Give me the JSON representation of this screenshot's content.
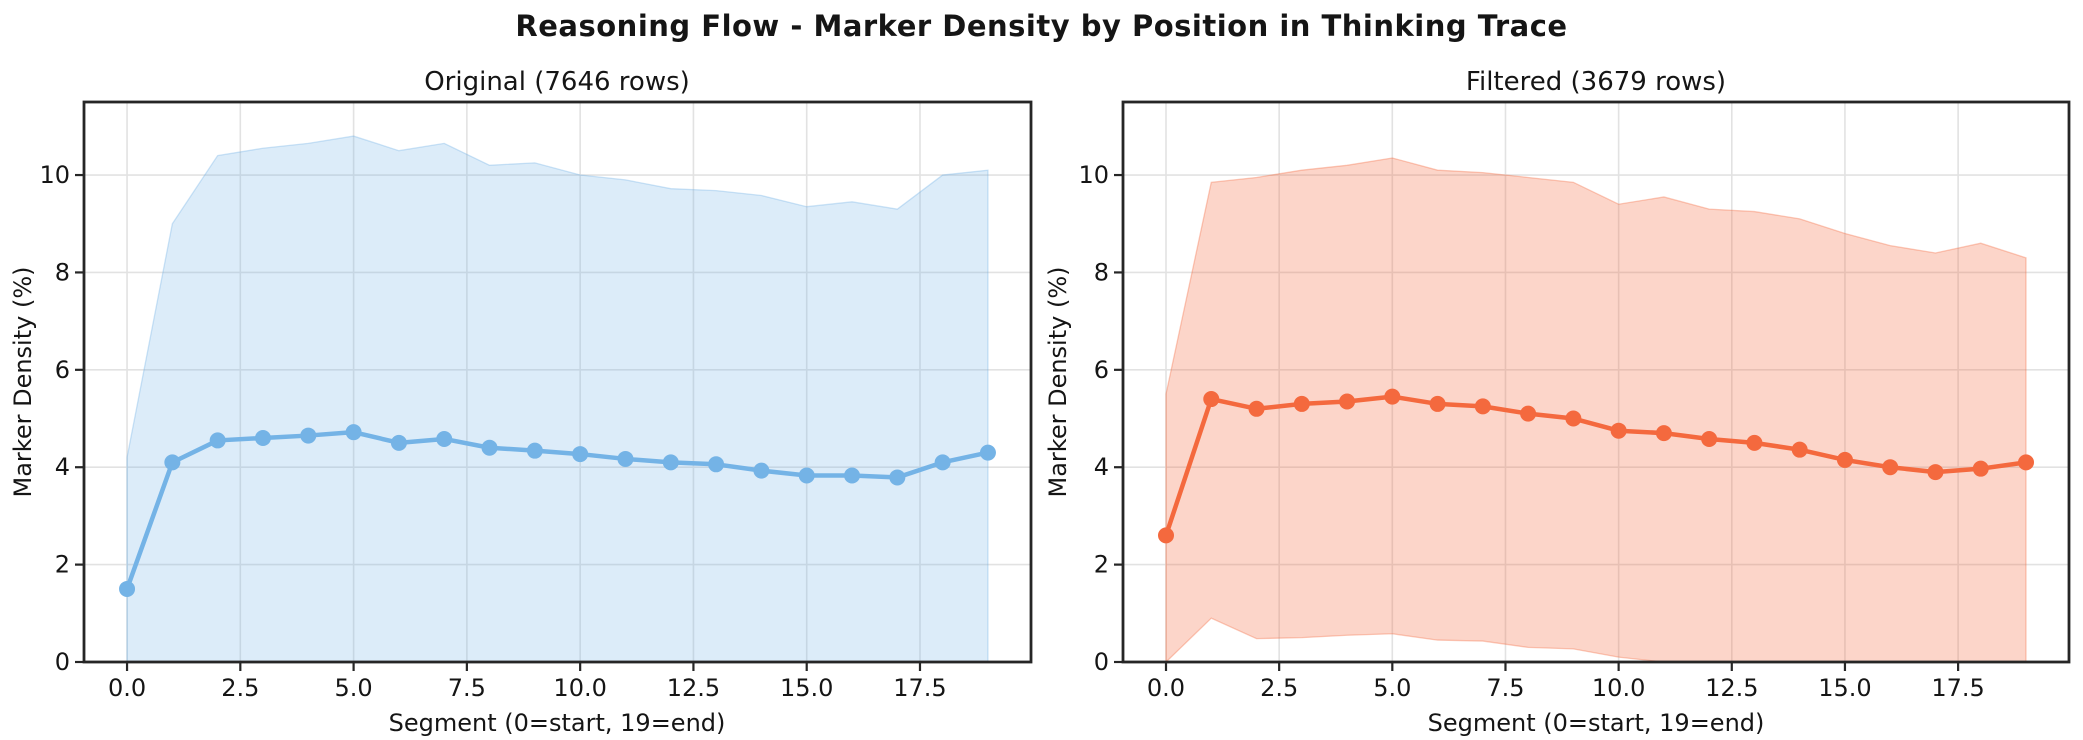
{
  "figure": {
    "title": "Reasoning Flow - Marker Density by Position in Thinking Trace",
    "background": "#ffffff",
    "text_color": "#151515",
    "spine_color": "#262626",
    "grid_color": "#e2e2e2"
  },
  "chart_data": [
    {
      "type": "line",
      "title": "Original (7646 rows)",
      "xlabel": "Segment (0=start, 19=end)",
      "ylabel": "Marker Density (%)",
      "legend_position": "none",
      "grid": true,
      "line_color": "#74b3e6",
      "fill_alpha": 0.25,
      "xlim": [
        -0.95,
        19.95
      ],
      "ylim": [
        0,
        11.5
      ],
      "xticks": [
        0,
        2.5,
        5,
        7.5,
        10,
        12.5,
        15,
        17.5
      ],
      "xtick_labels": [
        "0.0",
        "2.5",
        "5.0",
        "7.5",
        "10.0",
        "12.5",
        "15.0",
        "17.5"
      ],
      "yticks": [
        0,
        2,
        4,
        6,
        8,
        10
      ],
      "ytick_labels": [
        "0",
        "2",
        "4",
        "6",
        "8",
        "10"
      ],
      "x": [
        0,
        1,
        2,
        3,
        4,
        5,
        6,
        7,
        8,
        9,
        10,
        11,
        12,
        13,
        14,
        15,
        16,
        17,
        18,
        19
      ],
      "series": [
        {
          "name": "mean_density",
          "values": [
            1.5,
            4.1,
            4.55,
            4.6,
            4.65,
            4.72,
            4.5,
            4.58,
            4.4,
            4.34,
            4.27,
            4.17,
            4.1,
            4.06,
            3.93,
            3.83,
            3.83,
            3.79,
            4.1,
            4.3
          ]
        },
        {
          "name": "band_upper",
          "values": [
            4.2,
            9.0,
            10.4,
            10.55,
            10.65,
            10.8,
            10.5,
            10.65,
            10.2,
            10.25,
            10.0,
            9.9,
            9.72,
            9.68,
            9.58,
            9.35,
            9.45,
            9.3,
            10.0,
            10.1
          ]
        },
        {
          "name": "band_lower",
          "values": [
            0,
            0,
            0,
            0,
            0,
            0,
            0,
            0,
            0,
            0,
            0,
            0,
            0,
            0,
            0,
            0,
            0,
            0,
            0,
            0
          ]
        }
      ]
    },
    {
      "type": "line",
      "title": "Filtered (3679 rows)",
      "xlabel": "Segment (0=start, 19=end)",
      "ylabel": "Marker Density (%)",
      "legend_position": "none",
      "grid": true,
      "line_color": "#f4693e",
      "fill_alpha": 0.28,
      "xlim": [
        -0.95,
        19.95
      ],
      "ylim": [
        0,
        11.5
      ],
      "xticks": [
        0,
        2.5,
        5,
        7.5,
        10,
        12.5,
        15,
        17.5
      ],
      "xtick_labels": [
        "0.0",
        "2.5",
        "5.0",
        "7.5",
        "10.0",
        "12.5",
        "15.0",
        "17.5"
      ],
      "yticks": [
        0,
        2,
        4,
        6,
        8,
        10
      ],
      "ytick_labels": [
        "0",
        "2",
        "4",
        "6",
        "8",
        "10"
      ],
      "x": [
        0,
        1,
        2,
        3,
        4,
        5,
        6,
        7,
        8,
        9,
        10,
        11,
        12,
        13,
        14,
        15,
        16,
        17,
        18,
        19
      ],
      "series": [
        {
          "name": "mean_density",
          "values": [
            2.6,
            5.4,
            5.2,
            5.3,
            5.35,
            5.45,
            5.3,
            5.25,
            5.1,
            5.0,
            4.75,
            4.7,
            4.58,
            4.5,
            4.36,
            4.15,
            4.0,
            3.9,
            3.97,
            4.1
          ]
        },
        {
          "name": "band_upper",
          "values": [
            5.5,
            9.85,
            9.95,
            10.1,
            10.2,
            10.35,
            10.1,
            10.05,
            9.95,
            9.85,
            9.4,
            9.55,
            9.3,
            9.25,
            9.1,
            8.8,
            8.55,
            8.4,
            8.6,
            8.3
          ]
        },
        {
          "name": "band_lower",
          "values": [
            0,
            0.9,
            0.48,
            0.5,
            0.55,
            0.58,
            0.45,
            0.43,
            0.3,
            0.27,
            0.1,
            0,
            0,
            0,
            0,
            0,
            0,
            0,
            0,
            0
          ]
        }
      ]
    }
  ]
}
